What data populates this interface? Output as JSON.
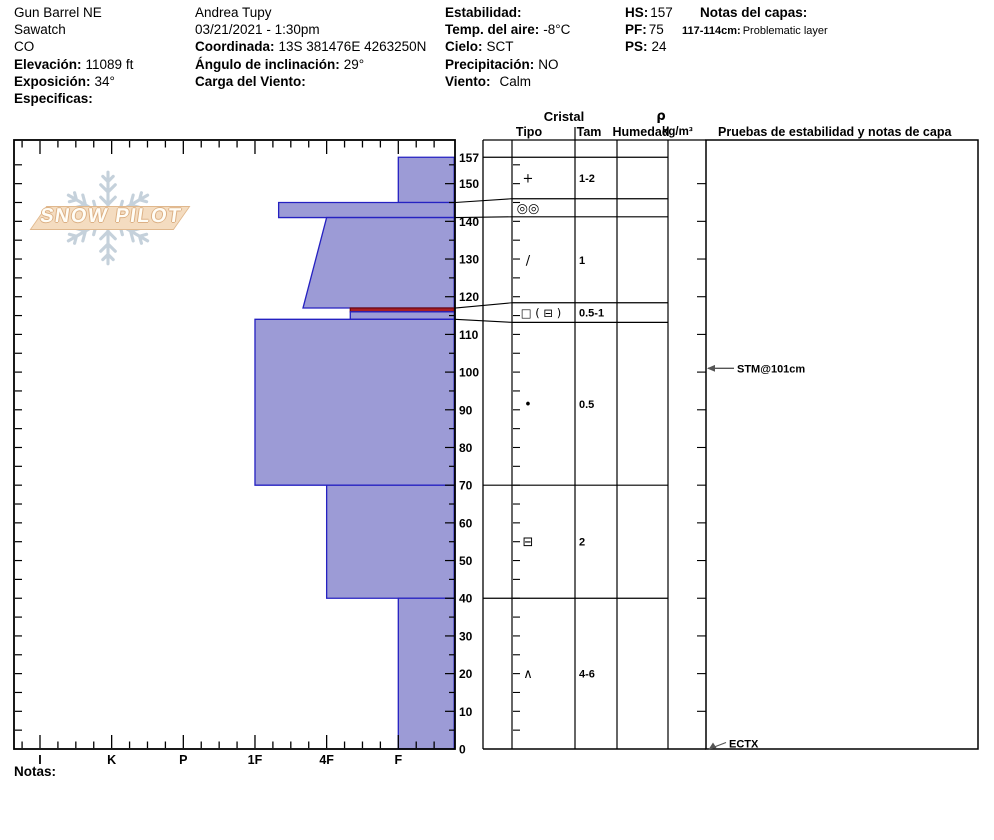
{
  "header": {
    "col1": {
      "site": "Gun Barrel NE",
      "range": "Sawatch",
      "state": "CO",
      "elev_label": "Elevación:",
      "elev_value": "11089 ft",
      "aspect_label": "Exposición:",
      "aspect_value": "34°",
      "specifics_label": "Especificas:",
      "specifics_value": ""
    },
    "col2": {
      "observer": "Andrea Tupy",
      "datetime": "03/21/2021 - 1:30pm",
      "coord_label": "Coordinada:",
      "coord_value": "13S 381476E 4263250N",
      "slope_label": "Ángulo de inclinación:",
      "slope_value": "29°",
      "windload_label": "Carga del Viento:",
      "windload_value": ""
    },
    "col3": {
      "stability_label": "Estabilidad:",
      "stability_value": "",
      "airtemp_label": "Temp. del aire:",
      "airtemp_value": "-8°C",
      "sky_label": "Cielo:",
      "sky_value": "SCT",
      "precip_label": "Precipitación:",
      "precip_value": "NO",
      "wind_label": "Viento:",
      "wind_value": "Calm"
    },
    "col4": {
      "hs_label": "HS:",
      "hs_value": "157",
      "pf_label": "PF:",
      "pf_value": "75",
      "ps_label": "PS:",
      "ps_value": "24"
    },
    "col5": {
      "notes_label": "Notas del capas:",
      "note1_range": "117-114cm:",
      "note1_text": "Problematic layer"
    }
  },
  "logo": {
    "text": "SNOW PILOT",
    "snowflake_icon": "snowflake"
  },
  "panel_headers": {
    "cristal": "Cristal",
    "tipo": "Tipo",
    "tam": "Tam",
    "humedad": "Humedad",
    "rho": "ρ",
    "rho_units": "kg/m³",
    "pruebas": "Pruebas de estabilidad y notas de capa"
  },
  "footer": {
    "notes_label": "Notas:"
  },
  "chart_data": {
    "type": "bar",
    "subtype": "snow-hardness-profile",
    "title": "Snow pit hardness profile, depth (cm) vs hand hardness",
    "hardness_axis": {
      "labels": [
        "I",
        "K",
        "P",
        "1F",
        "4F",
        "F"
      ],
      "note": "hardest (I) at left, softest (F) at right; numeric h: 0=I,1=K,2=P,3=1F,4=4F,5=F",
      "minor_divisions_per_step": 4
    },
    "depth_axis": {
      "unit": "cm",
      "surface_cm": 157,
      "tick_labels": [
        157,
        150,
        140,
        130,
        120,
        110,
        100,
        90,
        80,
        70,
        60,
        50,
        40,
        30,
        20,
        10,
        0
      ],
      "major_tick_cm": 10,
      "minor_tick_cm": 5
    },
    "layers": [
      {
        "top_cm": 157,
        "bottom_cm": 145,
        "hardness": "F",
        "h_top": 5.0,
        "h_bot": 5.0,
        "problem": false
      },
      {
        "top_cm": 145,
        "bottom_cm": 141,
        "hardness": "1F-",
        "h_top": 3.33,
        "h_bot": 3.33,
        "problem": false
      },
      {
        "top_cm": 141,
        "bottom_cm": 117,
        "hardness": "4F to 4F+",
        "h_top": 4.0,
        "h_bot": 3.67,
        "problem": false
      },
      {
        "top_cm": 117,
        "bottom_cm": 116,
        "hardness": "4F-",
        "h_top": 4.33,
        "h_bot": 4.33,
        "problem": true
      },
      {
        "top_cm": 116,
        "bottom_cm": 114,
        "hardness": "4F-",
        "h_top": 4.33,
        "h_bot": 4.33,
        "problem": false
      },
      {
        "top_cm": 114,
        "bottom_cm": 70,
        "hardness": "1F",
        "h_top": 3.0,
        "h_bot": 3.0,
        "problem": false
      },
      {
        "top_cm": 70,
        "bottom_cm": 40,
        "hardness": "4F",
        "h_top": 4.0,
        "h_bot": 4.0,
        "problem": false
      },
      {
        "top_cm": 40,
        "bottom_cm": 0,
        "hardness": "F",
        "h_top": 5.0,
        "h_bot": 5.0,
        "problem": false
      }
    ],
    "grains": [
      {
        "row_top_cm": 157,
        "row_bottom_cm": 146,
        "true_top_cm": 157,
        "type_symbol": "+",
        "size_mm": "1-2"
      },
      {
        "row_top_cm": 146,
        "row_bottom_cm": 141.2,
        "true_top_cm": 145,
        "type_symbol": "◎◎",
        "size_mm": ""
      },
      {
        "row_top_cm": 141.2,
        "row_bottom_cm": 118.4,
        "true_top_cm": 141,
        "type_symbol": "∕",
        "size_mm": "1"
      },
      {
        "row_top_cm": 118.4,
        "row_bottom_cm": 113.2,
        "true_top_cm": 117,
        "type_symbol": "□ ( ⊟ )",
        "size_mm": "0.5-1"
      },
      {
        "row_top_cm": 113.2,
        "row_bottom_cm": 70,
        "true_top_cm": 114,
        "type_symbol": "•",
        "size_mm": "0.5"
      },
      {
        "row_top_cm": 70,
        "row_bottom_cm": 40,
        "true_top_cm": 70,
        "type_symbol": "⊟",
        "size_mm": "2"
      },
      {
        "row_top_cm": 40,
        "row_bottom_cm": 0,
        "true_top_cm": 40,
        "type_symbol": "∧",
        "size_mm": "4-6"
      }
    ],
    "tests": [
      {
        "label": "STM@101cm",
        "depth_cm": 101,
        "arrow": "left"
      },
      {
        "label": "ECTX",
        "depth_cm": 0,
        "arrow": "diagonal-to-bottom"
      }
    ],
    "colors": {
      "layer_fill": "#9c9bd6",
      "layer_stroke": "#2521c1",
      "problem_fill": "#a81e24",
      "problem_stroke": "#70090e",
      "annotation": "#555555"
    }
  }
}
